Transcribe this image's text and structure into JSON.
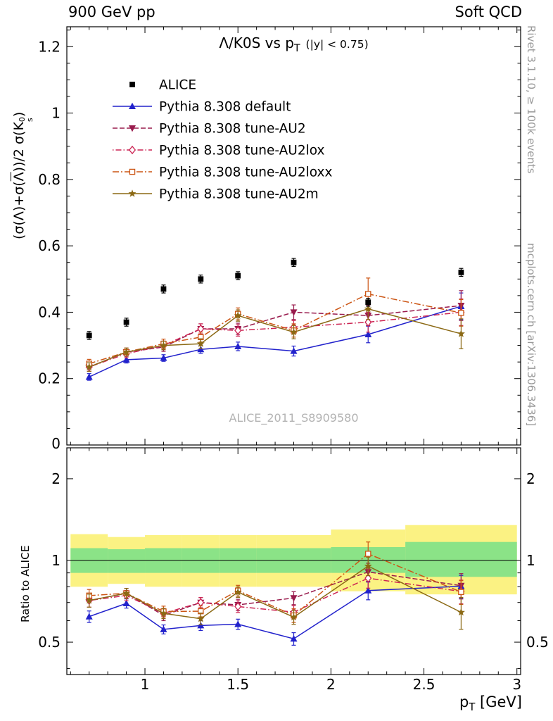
{
  "header": {
    "left": "900 GeV pp",
    "right": "Soft QCD"
  },
  "side_notes": {
    "top_right": "Rivet 3.1.10, ≥ 100k events",
    "bottom_right": "mcplots.cern.ch [arXiv:1306.3436]"
  },
  "watermark": "ALICE_2011_S8909580",
  "chart_data": {
    "type": "line",
    "title": {
      "main": "Λ/K0S vs p",
      "sub": "T",
      "note": "(|y| < 0.75)"
    },
    "xlabel": {
      "main": "p",
      "sub": "T",
      "unit": " [GeV]"
    },
    "ylabel_parts": {
      "p1": "(σ(Λ)+σ(",
      "lbar": "Λ",
      "p2": "))/2 σ(K",
      "ksup": "0",
      "ksub": "s",
      "p3": ")"
    },
    "ratio_label": "Ratio to ALICE",
    "x_range": [
      0.58,
      3.02
    ],
    "main_y_range": [
      0,
      1.26
    ],
    "ratio_y_range": [
      0.38,
      2.6
    ],
    "ratio_log": true,
    "grid": false,
    "legend_position": "top-left-inside",
    "x_major_ticks": [
      1,
      1.5,
      2,
      2.5,
      3
    ],
    "x_major_labels": [
      "1",
      "1.5",
      "2",
      "2.5",
      "3"
    ],
    "x_minor_step": 0.1,
    "main_y_ticks": [
      0,
      0.2,
      0.4,
      0.6,
      0.8,
      1,
      1.2
    ],
    "main_y_labels": [
      "0",
      "0.2",
      "0.4",
      "0.6",
      "0.8",
      "1",
      "1.2"
    ],
    "ratio_y_ticks": [
      0.5,
      1,
      2
    ],
    "ratio_y_labels": [
      "0.5",
      "1",
      "2"
    ],
    "ratio_minor_ticks": [
      0.4,
      0.6,
      0.7,
      0.8,
      0.9
    ],
    "x": [
      0.7,
      0.9,
      1.1,
      1.3,
      1.5,
      1.8,
      2.2,
      2.7
    ],
    "reference": {
      "label": "ALICE",
      "color": "#000000",
      "marker": "square-filled",
      "values": [
        0.33,
        0.37,
        0.47,
        0.5,
        0.51,
        0.55,
        0.43,
        0.52
      ],
      "errors": [
        0.012,
        0.012,
        0.012,
        0.012,
        0.012,
        0.012,
        0.012,
        0.012
      ]
    },
    "series": [
      {
        "label": "Pythia 8.308 default",
        "color": "#2222cc",
        "marker": "triangle-up-filled",
        "dash": "",
        "values": [
          0.205,
          0.257,
          0.262,
          0.288,
          0.297,
          0.283,
          0.333,
          0.418
        ],
        "errors": [
          0.01,
          0.01,
          0.01,
          0.012,
          0.013,
          0.015,
          0.025,
          0.04
        ]
      },
      {
        "label": "Pythia 8.308 tune-AU2",
        "color": "#991b4d",
        "marker": "triangle-down-filled",
        "dash": "7,3",
        "values": [
          0.235,
          0.28,
          0.295,
          0.35,
          0.35,
          0.4,
          0.39,
          0.42
        ],
        "errors": [
          0.013,
          0.012,
          0.013,
          0.015,
          0.017,
          0.022,
          0.03,
          0.045
        ]
      },
      {
        "label": "Pythia 8.308 tune-AU2lox",
        "color": "#cc2453",
        "marker": "diamond-open",
        "dash": "1.5,3,8,3",
        "values": [
          0.235,
          0.275,
          0.3,
          0.35,
          0.345,
          0.355,
          0.37,
          0.4
        ],
        "errors": [
          0.013,
          0.012,
          0.013,
          0.015,
          0.017,
          0.02,
          0.03,
          0.04
        ]
      },
      {
        "label": "Pythia 8.308 tune-AU2loxx",
        "color": "#cc5514",
        "marker": "square-open",
        "dash": "9,3,2,3",
        "values": [
          0.245,
          0.28,
          0.305,
          0.325,
          0.395,
          0.345,
          0.455,
          0.398
        ],
        "errors": [
          0.013,
          0.012,
          0.014,
          0.015,
          0.018,
          0.02,
          0.048,
          0.04
        ]
      },
      {
        "label": "Pythia 8.308 tune-AU2m",
        "color": "#8b6914",
        "marker": "star-filled",
        "dash": "",
        "values": [
          0.235,
          0.28,
          0.3,
          0.305,
          0.39,
          0.34,
          0.41,
          0.335
        ],
        "errors": [
          0.013,
          0.012,
          0.013,
          0.015,
          0.017,
          0.02,
          0.032,
          0.045
        ]
      }
    ],
    "band_colors": {
      "outer": "#fbf283",
      "inner": "#8be387"
    },
    "ratio_bands": [
      {
        "x1": 0.6,
        "x2": 0.8,
        "outer": [
          0.8,
          1.25
        ],
        "inner": [
          0.9,
          1.11
        ]
      },
      {
        "x1": 0.8,
        "x2": 1.0,
        "outer": [
          0.82,
          1.22
        ],
        "inner": [
          0.9,
          1.1
        ]
      },
      {
        "x1": 1.0,
        "x2": 1.2,
        "outer": [
          0.8,
          1.24
        ],
        "inner": [
          0.9,
          1.11
        ]
      },
      {
        "x1": 1.2,
        "x2": 1.4,
        "outer": [
          0.8,
          1.24
        ],
        "inner": [
          0.9,
          1.11
        ]
      },
      {
        "x1": 1.4,
        "x2": 1.6,
        "outer": [
          0.8,
          1.24
        ],
        "inner": [
          0.9,
          1.11
        ]
      },
      {
        "x1": 1.6,
        "x2": 2.0,
        "outer": [
          0.8,
          1.24
        ],
        "inner": [
          0.9,
          1.11
        ]
      },
      {
        "x1": 2.0,
        "x2": 2.4,
        "outer": [
          0.77,
          1.3
        ],
        "inner": [
          0.9,
          1.12
        ]
      },
      {
        "x1": 2.4,
        "x2": 3.0,
        "outer": [
          0.75,
          1.35
        ],
        "inner": [
          0.87,
          1.17
        ]
      }
    ]
  }
}
